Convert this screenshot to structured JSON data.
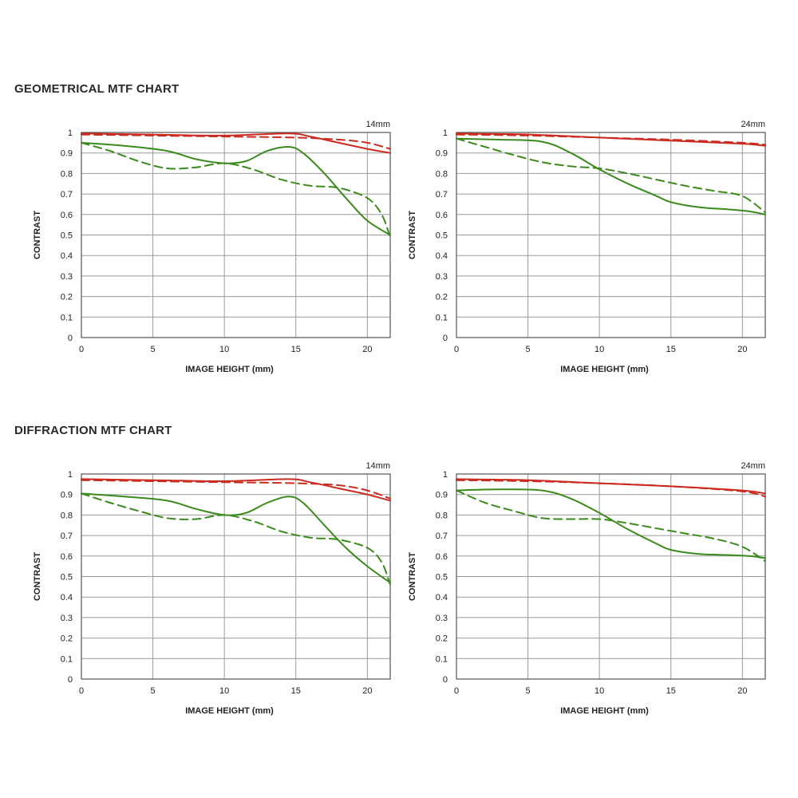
{
  "sections": {
    "geometrical_title": "GEOMETRICAL MTF CHART",
    "diffraction_title": "DIFFRACTION MTF CHART"
  },
  "colors": {
    "red": "#cc2a1e",
    "green": "#3b8a1c",
    "grid": "#9a9a9a",
    "frame": "#555555"
  },
  "chart_data": [
    {
      "id": "geo-14",
      "type": "line",
      "focal_label": "14mm",
      "xlabel": "IMAGE HEIGHT (mm)",
      "ylabel": "CONTRAST",
      "xlim": [
        0,
        21.6
      ],
      "ylim": [
        0,
        1
      ],
      "xticks": [
        0,
        5,
        10,
        15,
        20
      ],
      "yticks": [
        0,
        0.1,
        0.2,
        0.3,
        0.4,
        0.5,
        0.6,
        0.7,
        0.8,
        0.9,
        1
      ],
      "series": [
        {
          "color": "red",
          "dash": false,
          "x": [
            0,
            5,
            10,
            14.5,
            16,
            18,
            20,
            21.6
          ],
          "y": [
            0.995,
            0.99,
            0.985,
            0.995,
            0.98,
            0.95,
            0.92,
            0.9
          ]
        },
        {
          "color": "red",
          "dash": true,
          "x": [
            0,
            5,
            10,
            15,
            18,
            20,
            21.6
          ],
          "y": [
            0.99,
            0.985,
            0.98,
            0.975,
            0.965,
            0.95,
            0.92
          ]
        },
        {
          "color": "green",
          "dash": false,
          "x": [
            0,
            3,
            6,
            8,
            10,
            11.5,
            13,
            14.5,
            15.5,
            17,
            18.5,
            20,
            21.6
          ],
          "y": [
            0.95,
            0.935,
            0.91,
            0.87,
            0.85,
            0.86,
            0.91,
            0.93,
            0.9,
            0.8,
            0.68,
            0.57,
            0.5
          ]
        },
        {
          "color": "green",
          "dash": true,
          "x": [
            0,
            2,
            4,
            6,
            8,
            10,
            12,
            14,
            16,
            18,
            20,
            21,
            21.6
          ],
          "y": [
            0.95,
            0.91,
            0.86,
            0.825,
            0.83,
            0.85,
            0.82,
            0.77,
            0.74,
            0.73,
            0.68,
            0.6,
            0.49
          ]
        }
      ]
    },
    {
      "id": "geo-24",
      "type": "line",
      "focal_label": "24mm",
      "xlabel": "IMAGE HEIGHT (mm)",
      "ylabel": "CONTRAST",
      "xlim": [
        0,
        21.6
      ],
      "ylim": [
        0,
        1
      ],
      "xticks": [
        0,
        5,
        10,
        15,
        20
      ],
      "yticks": [
        0,
        0.1,
        0.2,
        0.3,
        0.4,
        0.5,
        0.6,
        0.7,
        0.8,
        0.9,
        1
      ],
      "series": [
        {
          "color": "red",
          "dash": false,
          "x": [
            0,
            5,
            10,
            15,
            20,
            21.6
          ],
          "y": [
            0.995,
            0.99,
            0.975,
            0.96,
            0.945,
            0.935
          ]
        },
        {
          "color": "red",
          "dash": true,
          "x": [
            0,
            5,
            10,
            15,
            20,
            21.6
          ],
          "y": [
            0.99,
            0.985,
            0.975,
            0.965,
            0.95,
            0.94
          ]
        },
        {
          "color": "green",
          "dash": false,
          "x": [
            0,
            3,
            6,
            8,
            10,
            12,
            14,
            15,
            17,
            19,
            20.5,
            21.6
          ],
          "y": [
            0.97,
            0.965,
            0.955,
            0.9,
            0.82,
            0.75,
            0.69,
            0.66,
            0.635,
            0.625,
            0.615,
            0.6
          ]
        },
        {
          "color": "green",
          "dash": true,
          "x": [
            0,
            2,
            4,
            6,
            8,
            10,
            12,
            14,
            16,
            18,
            20,
            21.6
          ],
          "y": [
            0.97,
            0.93,
            0.89,
            0.855,
            0.835,
            0.825,
            0.8,
            0.77,
            0.74,
            0.715,
            0.69,
            0.61
          ]
        }
      ]
    },
    {
      "id": "dif-14",
      "type": "line",
      "focal_label": "14mm",
      "xlabel": "IMAGE HEIGHT (mm)",
      "ylabel": "CONTRAST",
      "xlim": [
        0,
        21.6
      ],
      "ylim": [
        0,
        1
      ],
      "xticks": [
        0,
        5,
        10,
        15,
        20
      ],
      "yticks": [
        0,
        0.1,
        0.2,
        0.3,
        0.4,
        0.5,
        0.6,
        0.7,
        0.8,
        0.9,
        1
      ],
      "series": [
        {
          "color": "red",
          "dash": false,
          "x": [
            0,
            5,
            10,
            14.5,
            16,
            18,
            20,
            21.6
          ],
          "y": [
            0.975,
            0.97,
            0.965,
            0.975,
            0.96,
            0.93,
            0.9,
            0.87
          ]
        },
        {
          "color": "red",
          "dash": true,
          "x": [
            0,
            5,
            10,
            15,
            18,
            20,
            21.6
          ],
          "y": [
            0.97,
            0.965,
            0.96,
            0.955,
            0.945,
            0.92,
            0.88
          ]
        },
        {
          "color": "green",
          "dash": false,
          "x": [
            0,
            3,
            6,
            8,
            10,
            11.5,
            13,
            14.5,
            15.5,
            17,
            18.5,
            20,
            21.6
          ],
          "y": [
            0.905,
            0.89,
            0.87,
            0.83,
            0.8,
            0.81,
            0.86,
            0.89,
            0.86,
            0.75,
            0.64,
            0.55,
            0.47
          ]
        },
        {
          "color": "green",
          "dash": true,
          "x": [
            0,
            2,
            4,
            6,
            8,
            10,
            12,
            14,
            16,
            18,
            20,
            21,
            21.6
          ],
          "y": [
            0.905,
            0.86,
            0.82,
            0.785,
            0.78,
            0.8,
            0.77,
            0.72,
            0.69,
            0.68,
            0.64,
            0.57,
            0.46
          ]
        }
      ]
    },
    {
      "id": "dif-24",
      "type": "line",
      "focal_label": "24mm",
      "xlabel": "IMAGE HEIGHT (mm)",
      "ylabel": "CONTRAST",
      "xlim": [
        0,
        21.6
      ],
      "ylim": [
        0,
        1
      ],
      "xticks": [
        0,
        5,
        10,
        15,
        20
      ],
      "yticks": [
        0,
        0.1,
        0.2,
        0.3,
        0.4,
        0.5,
        0.6,
        0.7,
        0.8,
        0.9,
        1
      ],
      "series": [
        {
          "color": "red",
          "dash": false,
          "x": [
            0,
            5,
            10,
            15,
            20,
            21.6
          ],
          "y": [
            0.975,
            0.97,
            0.955,
            0.94,
            0.92,
            0.905
          ]
        },
        {
          "color": "red",
          "dash": true,
          "x": [
            0,
            5,
            10,
            15,
            20,
            21.6
          ],
          "y": [
            0.97,
            0.965,
            0.955,
            0.94,
            0.915,
            0.89
          ]
        },
        {
          "color": "green",
          "dash": false,
          "x": [
            0,
            3,
            6,
            8,
            10,
            12,
            14,
            15,
            17,
            19,
            20.5,
            21.6
          ],
          "y": [
            0.92,
            0.925,
            0.92,
            0.88,
            0.81,
            0.73,
            0.66,
            0.63,
            0.61,
            0.605,
            0.6,
            0.59
          ]
        },
        {
          "color": "green",
          "dash": true,
          "x": [
            0,
            2,
            4,
            6,
            8,
            10,
            12,
            14,
            16,
            18,
            20,
            21.6
          ],
          "y": [
            0.92,
            0.86,
            0.82,
            0.785,
            0.78,
            0.78,
            0.76,
            0.735,
            0.71,
            0.685,
            0.645,
            0.575
          ]
        }
      ]
    }
  ]
}
